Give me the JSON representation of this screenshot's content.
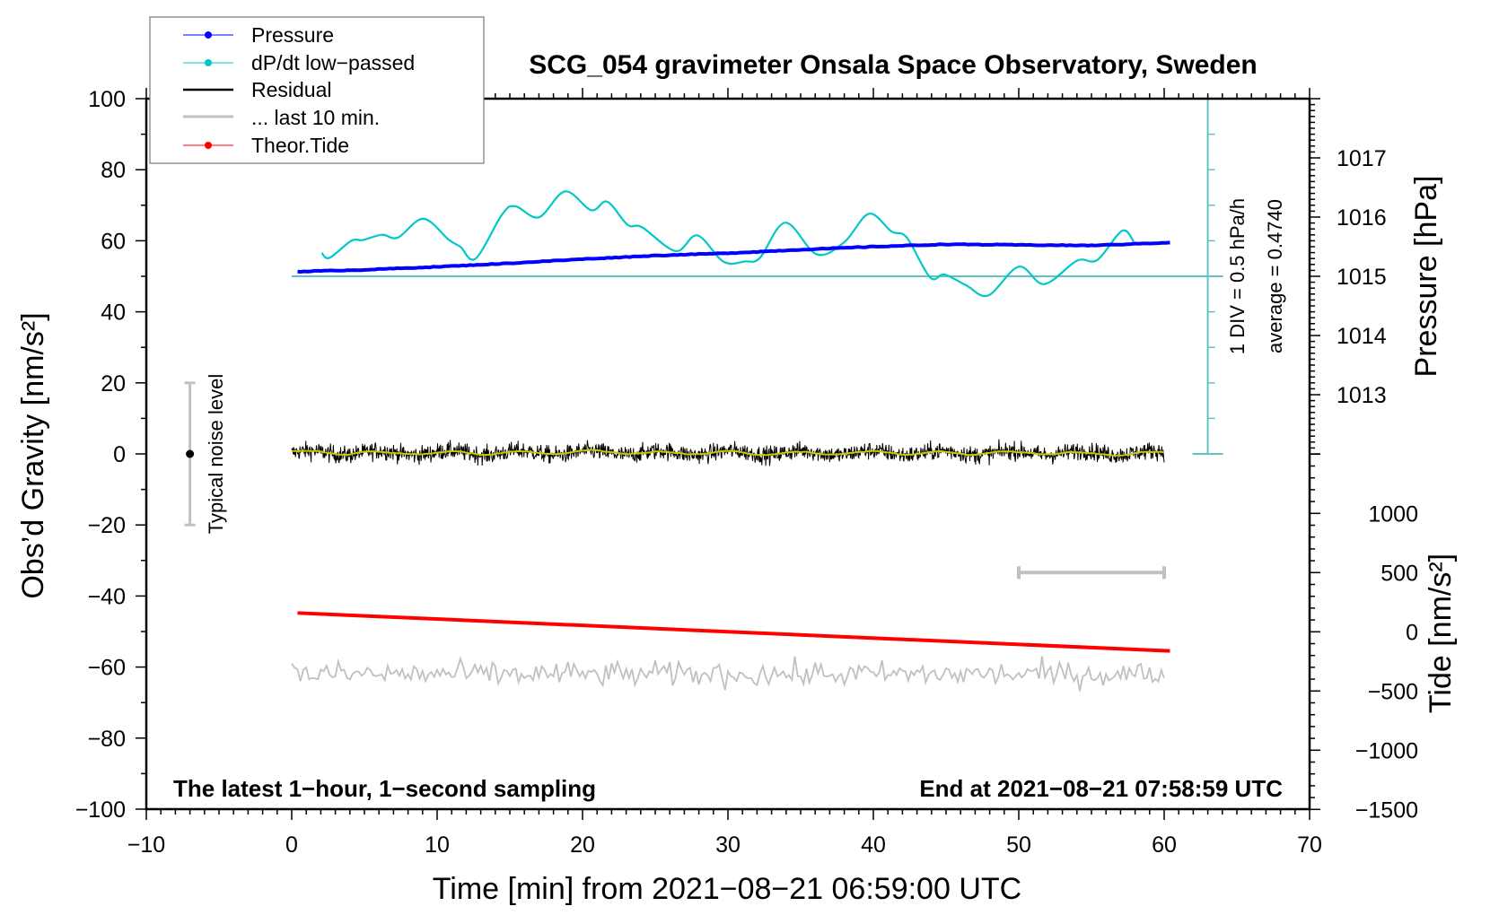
{
  "chart_data": {
    "type": "line",
    "title": "SCG_054 gravimeter Onsala Space Observatory, Sweden",
    "xlabel": "Time [min] from 2021−08−21 06:59:00 UTC",
    "ylabel_left": "Obs’d Gravity [nm/s²]",
    "ylabel_pressure": "Pressure [hPa]",
    "ylabel_tide": "Tide [nm/s²]",
    "xlim": [
      -10,
      70
    ],
    "ylim": [
      -100,
      100
    ],
    "pressure_lim": [
      1012,
      1018
    ],
    "tide_lim": [
      -1500,
      1500
    ],
    "xticks": [
      -10,
      0,
      10,
      20,
      30,
      40,
      50,
      60,
      70
    ],
    "xtick_labels": [
      "−10",
      "0",
      "10",
      "20",
      "30",
      "40",
      "50",
      "60",
      "70"
    ],
    "yticks": [
      100,
      80,
      60,
      40,
      20,
      0,
      -20,
      -40,
      -60,
      -80,
      -100
    ],
    "ytick_labels": [
      "100",
      "80",
      "60",
      "40",
      "20",
      "0",
      "−20",
      "−40",
      "−60",
      "−80",
      "−100"
    ],
    "pressure_ticks": [
      1017,
      1016,
      1015,
      1014,
      1013
    ],
    "pressure_tick_labels": [
      "1017",
      "1016",
      "1015",
      "1014",
      "1013"
    ],
    "tide_ticks": [
      1000,
      500,
      0,
      -500,
      -1000,
      -1500
    ],
    "tide_tick_labels": [
      "1000",
      "500",
      "0",
      "−500",
      "−1000",
      "−1500"
    ],
    "grid": false,
    "legend_placement": "top-left",
    "legend": [
      {
        "label": "Pressure",
        "color": "#0000ff",
        "marker": true
      },
      {
        "label": "dP/dt low−passed",
        "color": "#00c8c8",
        "marker": true
      },
      {
        "label": "Residual",
        "color": "#000000",
        "marker": false
      },
      {
        "label": "... last 10 min.",
        "color": "#c0c0c0",
        "marker": false
      },
      {
        "label": "Theor.Tide",
        "color": "#ff0000",
        "marker": true
      }
    ],
    "series": {
      "pressure_hPa": [
        [
          0.4,
          1015.08
        ],
        [
          5,
          1015.11
        ],
        [
          10,
          1015.16
        ],
        [
          15,
          1015.22
        ],
        [
          20,
          1015.29
        ],
        [
          25,
          1015.35
        ],
        [
          30,
          1015.39
        ],
        [
          35,
          1015.45
        ],
        [
          40,
          1015.5
        ],
        [
          45,
          1015.54
        ],
        [
          50,
          1015.53
        ],
        [
          55,
          1015.52
        ],
        [
          60.4,
          1015.57
        ]
      ],
      "dpdt_hPa_per_h": [
        [
          2.06,
          0.804
        ],
        [
          2.6,
          0.734
        ],
        [
          4.1,
          0.974
        ],
        [
          4.9,
          0.984
        ],
        [
          6.2,
          1.059
        ],
        [
          7.3,
          1.019
        ],
        [
          9.05,
          1.284
        ],
        [
          10.8,
          0.989
        ],
        [
          11.6,
          0.889
        ],
        [
          12.65,
          0.724
        ],
        [
          14.5,
          1.354
        ],
        [
          15.4,
          1.459
        ],
        [
          17.0,
          1.304
        ],
        [
          18.8,
          1.669
        ],
        [
          20.6,
          1.404
        ],
        [
          21.7,
          1.524
        ],
        [
          23.1,
          1.199
        ],
        [
          24.1,
          1.164
        ],
        [
          26.4,
          0.829
        ],
        [
          27.9,
          1.049
        ],
        [
          29.7,
          0.679
        ],
        [
          31.2,
          0.684
        ],
        [
          32.2,
          0.734
        ],
        [
          33.95,
          1.229
        ],
        [
          36.1,
          0.784
        ],
        [
          38.0,
          0.954
        ],
        [
          39.7,
          1.354
        ],
        [
          41.25,
          1.104
        ],
        [
          42.3,
          1.019
        ],
        [
          43.9,
          0.459
        ],
        [
          44.9,
          0.499
        ],
        [
          46.4,
          0.344
        ],
        [
          47.9,
          0.204
        ],
        [
          50.0,
          0.609
        ],
        [
          51.75,
          0.364
        ],
        [
          54.0,
          0.694
        ],
        [
          55.4,
          0.704
        ],
        [
          57.1,
          1.114
        ],
        [
          57.9,
          0.964
        ]
      ],
      "residual": {
        "t_start": 0,
        "t_end": 60,
        "mean": 0.3,
        "noise_amplitude": 2.5
      },
      "last_10_min": {
        "t_start": 0,
        "t_end": 60,
        "mean": -62,
        "noise_amplitude": 3
      },
      "tide_nm_s2": [
        [
          0.4,
          159
        ],
        [
          60.4,
          -162
        ]
      ]
    },
    "div_axis": {
      "x": 63,
      "div_hPa_per_h": 0.5,
      "average": 0.474,
      "label": "1 DIV = 0.5 hPa/h",
      "average_label": "average = 0.4740"
    },
    "noise_level": {
      "x": -7,
      "center": 0,
      "half_range": 20,
      "label": "Typical noise level"
    },
    "time_scale_bar": {
      "t_start": 50,
      "t_end": 60,
      "tide_level": 500
    },
    "annotations": {
      "bottom_left": "The latest 1−hour, 1−second sampling",
      "bottom_right": "End at 2021−08−21 07:58:59 UTC"
    },
    "colors": {
      "pressure": "#0000ff",
      "dpdt": "#00c8c8",
      "div_axis": "#5fc4c0",
      "residual": "#000000",
      "residual_smooth": "#c8c800",
      "last10": "#c0c0c0",
      "tide": "#ff0000"
    }
  }
}
